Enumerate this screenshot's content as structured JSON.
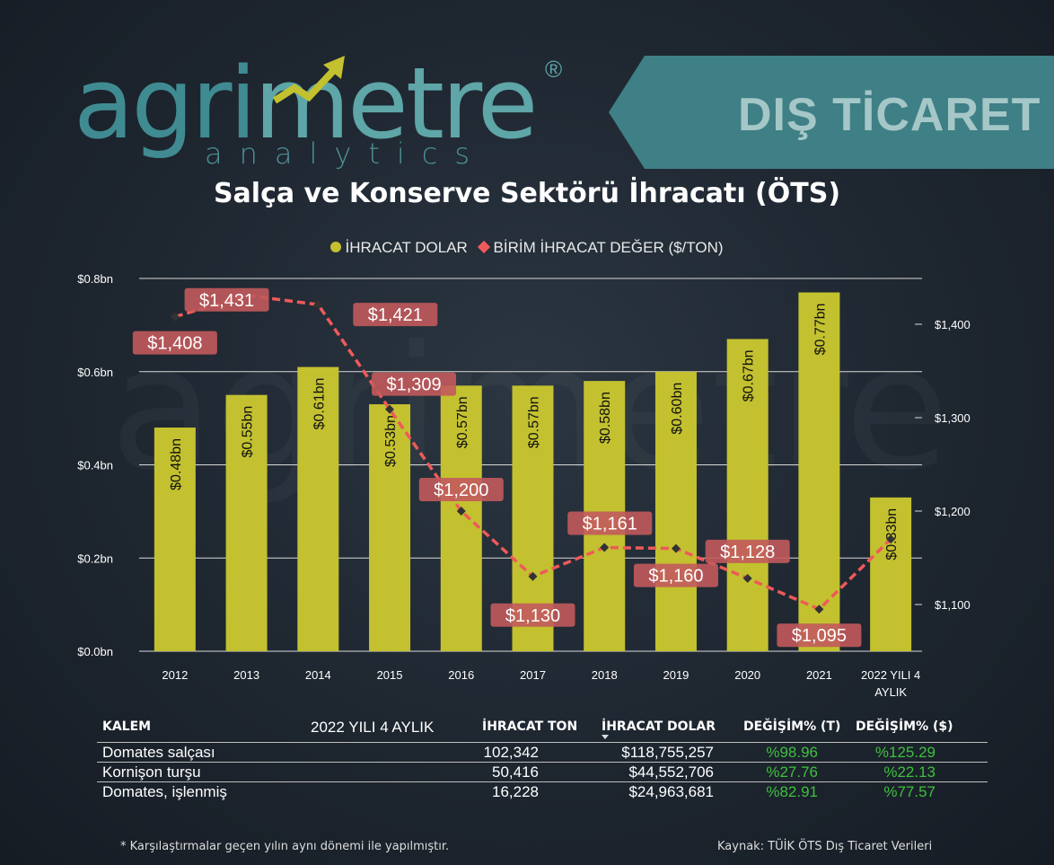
{
  "brand": {
    "logo_part1": "agri",
    "logo_part2": "metre",
    "logo_sub": "analytics",
    "logo_reg": "®",
    "banner": "DIŞ TİCARET"
  },
  "title": "Salça ve Konserve Sektörü İhracatı (ÖTS)",
  "legend": {
    "bar_label": "İHRACAT DOLAR",
    "line_label": "BİRİM İHRACAT DEĞER ($/TON)",
    "bar_color": "#c3c12f",
    "line_color": "#ee5a5a"
  },
  "chart_data": {
    "type": "bar",
    "categories": [
      "2012",
      "2013",
      "2014",
      "2015",
      "2016",
      "2017",
      "2018",
      "2019",
      "2020",
      "2021",
      "2022 YILI 4 AYLIK"
    ],
    "series": [
      {
        "name": "İHRACAT DOLAR",
        "type": "bar",
        "axis": "left",
        "values": [
          0.48,
          0.55,
          0.61,
          0.53,
          0.57,
          0.57,
          0.58,
          0.6,
          0.67,
          0.77,
          0.33
        ],
        "labels": [
          "$0.48bn",
          "$0.55bn",
          "$0.61bn",
          "$0.53bn",
          "$0.57bn",
          "$0.57bn",
          "$0.58bn",
          "$0.60bn",
          "$0.67bn",
          "$0.77bn",
          "$0.33bn"
        ]
      },
      {
        "name": "BİRİM İHRACAT DEĞER ($/TON)",
        "type": "line",
        "axis": "right",
        "values": [
          1408,
          1431,
          1421,
          1309,
          1200,
          1130,
          1161,
          1160,
          1128,
          1095,
          1170
        ],
        "labels": [
          "$1,408",
          "$1,431",
          "$1,421",
          "$1,309",
          "$1,200",
          "$1,130",
          "$1,161",
          "$1,160",
          "$1,128",
          "$1,095",
          ""
        ]
      }
    ],
    "y_left": {
      "min": 0,
      "max": 0.8,
      "ticks": [
        0,
        0.2,
        0.4,
        0.6,
        0.8
      ],
      "tick_labels": [
        "$0.0bn",
        "$0.2bn",
        "$0.4bn",
        "$0.6bn",
        "$0.8bn"
      ]
    },
    "y_right": {
      "ticks": [
        1100,
        1200,
        1300,
        1400
      ],
      "tick_labels": [
        "$1,100",
        "$1,200",
        "$1,300",
        "$1,400"
      ]
    },
    "grid": true,
    "legend_position": "top-center"
  },
  "table": {
    "headers": {
      "kalem": "KALEM",
      "period": "2022 YILI 4 AYLIK",
      "ton": "İHRACAT TON",
      "dolar": "İHRACAT DOLAR",
      "degisim_t": "DEĞİŞİM% (T)",
      "degisim_usd": "DEĞİŞİM% ($)"
    },
    "rows": [
      {
        "kalem": "Domates salçası",
        "ton": "102,342",
        "dolar": "$118,755,257",
        "degisim_t": "%98.96",
        "degisim_usd": "%125.29"
      },
      {
        "kalem": "Kornişon turşu",
        "ton": "50,416",
        "dolar": "$44,552,706",
        "degisim_t": "%27.76",
        "degisim_usd": "%22.13"
      },
      {
        "kalem": "Domates, işlenmiş",
        "ton": "16,228",
        "dolar": "$24,963,681",
        "degisim_t": "%82.91",
        "degisim_usd": "%77.57"
      }
    ]
  },
  "footnote": "* Karşılaştırmalar geçen yılın aynı dönemi ile yapılmıştır.",
  "source": "Kaynak: TÜİK ÖTS Dış Ticaret Verileri"
}
